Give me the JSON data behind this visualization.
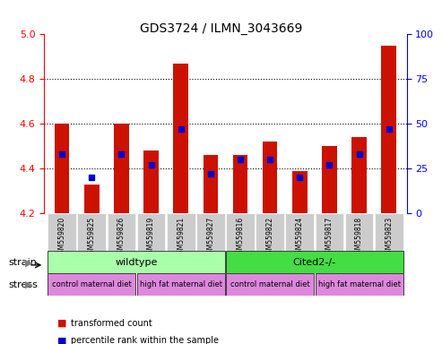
{
  "title": "GDS3724 / ILMN_3043669",
  "samples": [
    "GSM559820",
    "GSM559825",
    "GSM559826",
    "GSM559819",
    "GSM559821",
    "GSM559827",
    "GSM559816",
    "GSM559822",
    "GSM559824",
    "GSM559817",
    "GSM559818",
    "GSM559823"
  ],
  "transformed_count": [
    4.6,
    4.33,
    4.6,
    4.48,
    4.87,
    4.46,
    4.46,
    4.52,
    4.39,
    4.5,
    4.54,
    4.95
  ],
  "percentile_rank": [
    33,
    20,
    33,
    27,
    47,
    22,
    30,
    30,
    20,
    27,
    33,
    47
  ],
  "ylim_left": [
    4.2,
    5.0
  ],
  "ylim_right": [
    0,
    100
  ],
  "yticks_left": [
    4.2,
    4.4,
    4.6,
    4.8,
    5.0
  ],
  "yticks_right": [
    0,
    25,
    50,
    75,
    100
  ],
  "bar_color": "#cc1100",
  "blue_color": "#0000cc",
  "strain_wildtype": [
    0,
    5
  ],
  "strain_cited": [
    6,
    11
  ],
  "wildtype_label": "wildtype",
  "cited_label": "Cited2-/-",
  "stress_groups": [
    {
      "indices": [
        0,
        2
      ],
      "label": "control maternal diet"
    },
    {
      "indices": [
        3,
        5
      ],
      "label": "high fat maternal diet"
    },
    {
      "indices": [
        6,
        8
      ],
      "label": "control maternal diet"
    },
    {
      "indices": [
        9,
        11
      ],
      "label": "high fat maternal diet"
    }
  ],
  "strain_wt_color": "#aaffaa",
  "strain_cited_color": "#44dd44",
  "stress_color": "#dd88dd",
  "sample_bg_color": "#cccccc",
  "legend_items": [
    {
      "color": "#cc1100",
      "label": "transformed count"
    },
    {
      "color": "#0000cc",
      "label": "percentile rank within the sample"
    }
  ]
}
